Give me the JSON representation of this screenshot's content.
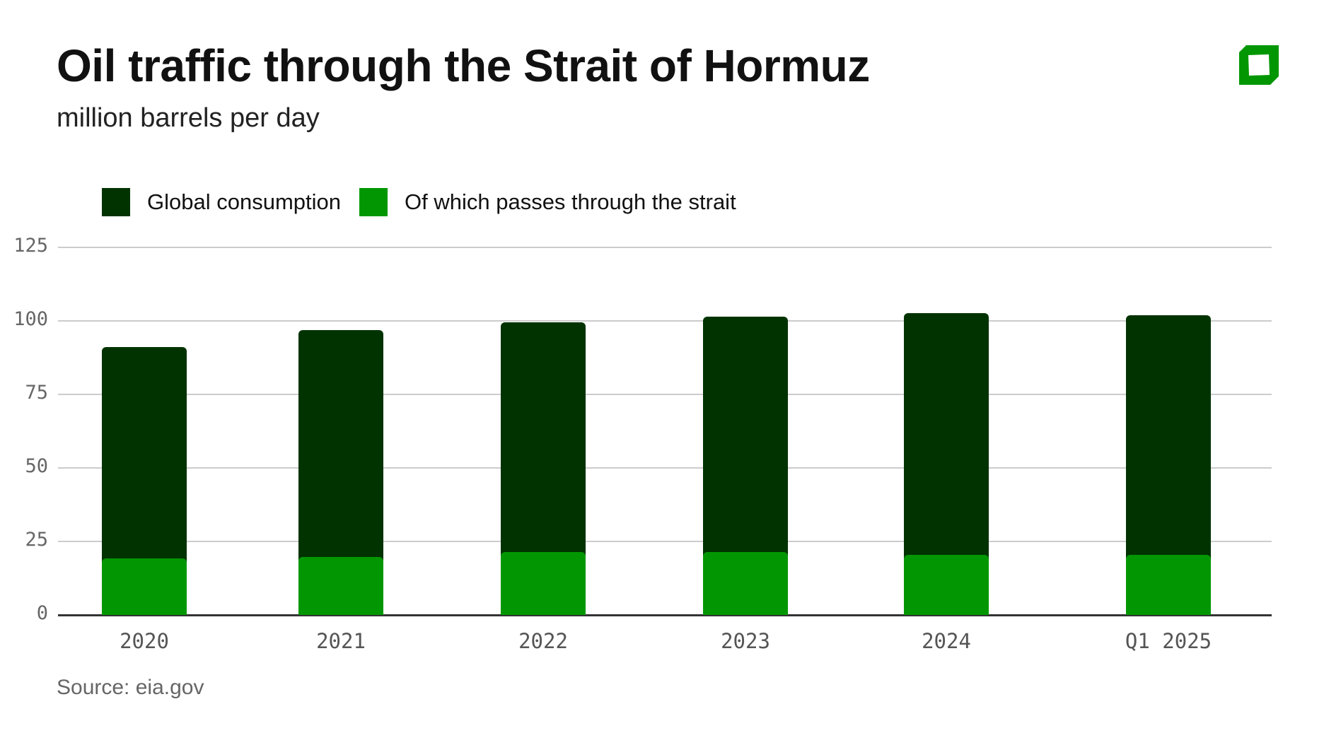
{
  "header": {
    "title": "Oil traffic through the Strait of Hormuz",
    "subtitle": "million barrels per day",
    "logo_icon": "green-square-logo-icon"
  },
  "legend": [
    {
      "label": "Global consumption",
      "color": "#013300"
    },
    {
      "label": "Of which passes through the strait",
      "color": "#029702"
    }
  ],
  "axis": {
    "y_ticks": [
      "0",
      "25",
      "50",
      "75",
      "100",
      "125"
    ],
    "x_ticks": [
      "2020",
      "2021",
      "2022",
      "2023",
      "2024",
      "Q1 2025"
    ]
  },
  "footer": {
    "source": "Source: eia.gov"
  },
  "colors": {
    "total": "#013300",
    "strait": "#029702",
    "grid": "#cccccc",
    "baseline": "#333333"
  },
  "chart_data": {
    "type": "bar",
    "title": "Oil traffic through the Strait of Hormuz",
    "subtitle": "million barrels per day",
    "xlabel": "",
    "ylabel": "million barrels per day",
    "categories": [
      "2020",
      "2021",
      "2022",
      "2023",
      "2024",
      "Q1 2025"
    ],
    "series": [
      {
        "name": "Global consumption",
        "values": [
          91.2,
          96.9,
          99.6,
          101.5,
          102.7,
          101.9
        ]
      },
      {
        "name": "Of which passes through the strait",
        "values": [
          19.2,
          19.6,
          21.5,
          21.5,
          20.4,
          20.4
        ]
      }
    ],
    "ylim": [
      0,
      125
    ],
    "yticks": [
      0,
      25,
      50,
      75,
      100,
      125
    ],
    "grid": true,
    "legend_position": "top-left, inside plot",
    "bars_overlaid": true,
    "source": "Source: eia.gov"
  }
}
